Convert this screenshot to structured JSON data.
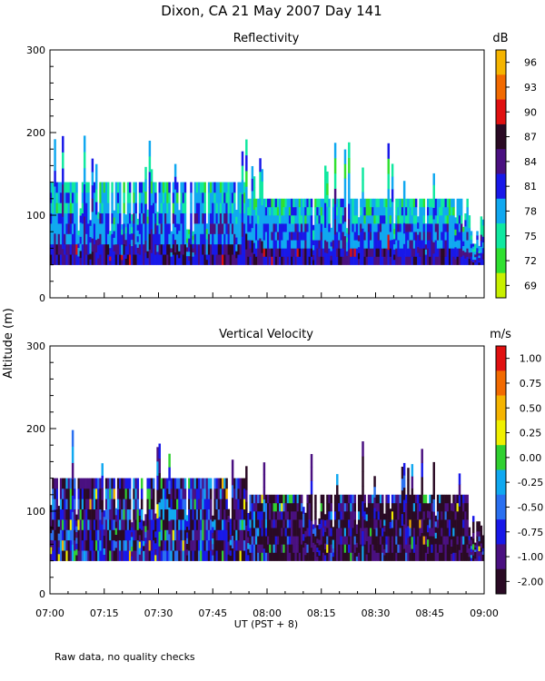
{
  "title": "Dixon, CA 21 May 2007  Day 141",
  "y_axis_label": "Altitude (m)",
  "footnote": "Raw data, no quality checks",
  "chart_data": [
    {
      "type": "heatmap",
      "title": "Reflectivity",
      "colorbar_unit": "dB",
      "colorbar_ticks": [
        "96",
        "93",
        "90",
        "87",
        "84",
        "81",
        "78",
        "75",
        "72",
        "69"
      ],
      "colorbar_colors": [
        "#f5b400",
        "#f26a00",
        "#e01010",
        "#2a0a24",
        "#4a1080",
        "#1818e8",
        "#10a8f0",
        "#10e8a0",
        "#30e030",
        "#c8f000"
      ],
      "x_ticks": [
        "07:00",
        "07:15",
        "07:30",
        "07:45",
        "08:00",
        "08:15",
        "08:30",
        "08:45",
        "09:00"
      ],
      "y_ticks": [
        "0",
        "100",
        "200",
        "300"
      ],
      "ylim": [
        0,
        300
      ],
      "xlim_hours": [
        7.0,
        9.0
      ],
      "echo_base_m": 40,
      "typical_echo_top_m": 120,
      "max_echo_top_m": 200
    },
    {
      "type": "heatmap",
      "title": "Vertical Velocity",
      "colorbar_unit": "m/s",
      "colorbar_ticks": [
        "1.00",
        "0.75",
        "0.50",
        "0.25",
        "0.00",
        "-0.25",
        "-0.50",
        "-0.75",
        "-1.00",
        "-2.00"
      ],
      "colorbar_colors": [
        "#e01010",
        "#f26a00",
        "#f5b400",
        "#f0f000",
        "#30d030",
        "#10a8f0",
        "#2a70f0",
        "#1818e8",
        "#4a1080",
        "#2a0a24"
      ],
      "x_ticks": [
        "07:00",
        "07:15",
        "07:30",
        "07:45",
        "08:00",
        "08:15",
        "08:30",
        "08:45",
        "09:00"
      ],
      "xlabel": "UT  (PST + 8)",
      "y_ticks": [
        "0",
        "100",
        "200",
        "300"
      ],
      "ylim": [
        0,
        300
      ],
      "xlim_hours": [
        7.0,
        9.0
      ],
      "echo_base_m": 40,
      "typical_echo_top_m": 120,
      "max_echo_top_m": 200
    }
  ]
}
